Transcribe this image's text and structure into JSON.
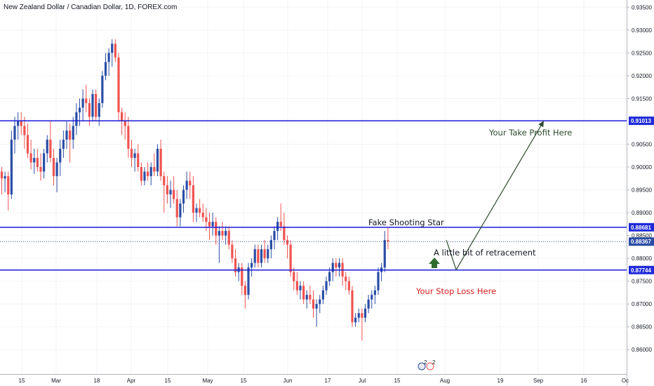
{
  "chart_data": {
    "type": "candlestick",
    "title": "New Zealand Dollar / Canadian Dollar, 1D, FOREX.com",
    "ylim": [
      0.8575,
      0.9356
    ],
    "y_ticks": [
      "0.86000",
      "0.86500",
      "0.87000",
      "0.87500",
      "0.88000",
      "0.88500",
      "0.89000",
      "0.89500",
      "0.90000",
      "0.90500",
      "0.91500",
      "0.92000",
      "0.92500",
      "0.93000",
      "0.93500"
    ],
    "x_ticks": [
      "15",
      "Mar",
      "18",
      "Apr",
      "15",
      "May",
      "15",
      "Jun",
      "17",
      "Jul",
      "15",
      "Aug",
      "19",
      "Sep",
      "16",
      "Oc"
    ],
    "colors": {
      "up": "#2a4ea6",
      "down": "#ef5350",
      "level_line": "#1a1adb",
      "badge": "#1f2bd9",
      "arrow": "#2e4a2e",
      "up_arrow": "#2f6b2f",
      "stop_text": "#d41f1f",
      "take_text": "#2e4a2e"
    },
    "levels": [
      {
        "value": 0.91013,
        "label": "0.91013"
      },
      {
        "value": 0.88681,
        "label": "0.88681"
      },
      {
        "value": 0.87744,
        "label": "0.87744"
      }
    ],
    "last_price": {
      "value": 0.88367,
      "label": "0.88367"
    },
    "annotations": {
      "take_profit": "Your Take Profit Here",
      "fake_star": "Fake Shooting Star",
      "retracement": "A little bit of retracement",
      "stop_loss": "Your Stop Loss Here"
    },
    "path_points": [
      {
        "day": 137,
        "price": 0.884
      },
      {
        "day": 140,
        "price": 0.8775
      },
      {
        "day": 167,
        "price": 0.9101
      }
    ],
    "event_badge": "2",
    "candles": [
      {
        "o": 0.899,
        "h": 0.9,
        "l": 0.894,
        "c": 0.8975
      },
      {
        "o": 0.8975,
        "h": 0.899,
        "l": 0.8945,
        "c": 0.898
      },
      {
        "o": 0.898,
        "h": 0.899,
        "l": 0.8905,
        "c": 0.894
      },
      {
        "o": 0.894,
        "h": 0.908,
        "l": 0.893,
        "c": 0.906
      },
      {
        "o": 0.906,
        "h": 0.911,
        "l": 0.903,
        "c": 0.909
      },
      {
        "o": 0.909,
        "h": 0.912,
        "l": 0.906,
        "c": 0.91
      },
      {
        "o": 0.91,
        "h": 0.912,
        "l": 0.907,
        "c": 0.909
      },
      {
        "o": 0.909,
        "h": 0.911,
        "l": 0.904,
        "c": 0.907
      },
      {
        "o": 0.907,
        "h": 0.9095,
        "l": 0.902,
        "c": 0.903
      },
      {
        "o": 0.903,
        "h": 0.906,
        "l": 0.8995,
        "c": 0.901
      },
      {
        "o": 0.901,
        "h": 0.904,
        "l": 0.8985,
        "c": 0.902
      },
      {
        "o": 0.902,
        "h": 0.904,
        "l": 0.899,
        "c": 0.9
      },
      {
        "o": 0.9,
        "h": 0.903,
        "l": 0.897,
        "c": 0.899
      },
      {
        "o": 0.899,
        "h": 0.904,
        "l": 0.8975,
        "c": 0.903
      },
      {
        "o": 0.903,
        "h": 0.907,
        "l": 0.901,
        "c": 0.906
      },
      {
        "o": 0.906,
        "h": 0.91,
        "l": 0.901,
        "c": 0.902
      },
      {
        "o": 0.902,
        "h": 0.904,
        "l": 0.896,
        "c": 0.898
      },
      {
        "o": 0.898,
        "h": 0.902,
        "l": 0.8945,
        "c": 0.901
      },
      {
        "o": 0.901,
        "h": 0.906,
        "l": 0.898,
        "c": 0.904
      },
      {
        "o": 0.904,
        "h": 0.908,
        "l": 0.902,
        "c": 0.906
      },
      {
        "o": 0.906,
        "h": 0.91,
        "l": 0.904,
        "c": 0.908
      },
      {
        "o": 0.908,
        "h": 0.9095,
        "l": 0.901,
        "c": 0.906
      },
      {
        "o": 0.906,
        "h": 0.911,
        "l": 0.904,
        "c": 0.909
      },
      {
        "o": 0.909,
        "h": 0.914,
        "l": 0.907,
        "c": 0.912
      },
      {
        "o": 0.912,
        "h": 0.915,
        "l": 0.909,
        "c": 0.913
      },
      {
        "o": 0.913,
        "h": 0.917,
        "l": 0.91,
        "c": 0.915
      },
      {
        "o": 0.915,
        "h": 0.918,
        "l": 0.912,
        "c": 0.914
      },
      {
        "o": 0.914,
        "h": 0.915,
        "l": 0.909,
        "c": 0.911
      },
      {
        "o": 0.911,
        "h": 0.917,
        "l": 0.91,
        "c": 0.916
      },
      {
        "o": 0.916,
        "h": 0.917,
        "l": 0.91,
        "c": 0.911
      },
      {
        "o": 0.911,
        "h": 0.915,
        "l": 0.909,
        "c": 0.914
      },
      {
        "o": 0.914,
        "h": 0.921,
        "l": 0.913,
        "c": 0.92
      },
      {
        "o": 0.92,
        "h": 0.925,
        "l": 0.919,
        "c": 0.923
      },
      {
        "o": 0.923,
        "h": 0.926,
        "l": 0.92,
        "c": 0.925
      },
      {
        "o": 0.925,
        "h": 0.928,
        "l": 0.922,
        "c": 0.927
      },
      {
        "o": 0.927,
        "h": 0.928,
        "l": 0.923,
        "c": 0.924
      },
      {
        "o": 0.924,
        "h": 0.925,
        "l": 0.91,
        "c": 0.912
      },
      {
        "o": 0.912,
        "h": 0.913,
        "l": 0.907,
        "c": 0.91
      },
      {
        "o": 0.91,
        "h": 0.912,
        "l": 0.906,
        "c": 0.909
      },
      {
        "o": 0.909,
        "h": 0.911,
        "l": 0.902,
        "c": 0.904
      },
      {
        "o": 0.904,
        "h": 0.906,
        "l": 0.9,
        "c": 0.902
      },
      {
        "o": 0.902,
        "h": 0.904,
        "l": 0.899,
        "c": 0.903
      },
      {
        "o": 0.903,
        "h": 0.905,
        "l": 0.899,
        "c": 0.9
      },
      {
        "o": 0.9,
        "h": 0.901,
        "l": 0.896,
        "c": 0.897
      },
      {
        "o": 0.897,
        "h": 0.9,
        "l": 0.896,
        "c": 0.899
      },
      {
        "o": 0.899,
        "h": 0.901,
        "l": 0.897,
        "c": 0.898
      },
      {
        "o": 0.898,
        "h": 0.901,
        "l": 0.896,
        "c": 0.9
      },
      {
        "o": 0.9,
        "h": 0.903,
        "l": 0.898,
        "c": 0.899
      },
      {
        "o": 0.899,
        "h": 0.905,
        "l": 0.898,
        "c": 0.904
      },
      {
        "o": 0.904,
        "h": 0.906,
        "l": 0.897,
        "c": 0.898
      },
      {
        "o": 0.898,
        "h": 0.899,
        "l": 0.89,
        "c": 0.896
      },
      {
        "o": 0.896,
        "h": 0.898,
        "l": 0.892,
        "c": 0.894
      },
      {
        "o": 0.894,
        "h": 0.897,
        "l": 0.891,
        "c": 0.895
      },
      {
        "o": 0.895,
        "h": 0.898,
        "l": 0.892,
        "c": 0.893
      },
      {
        "o": 0.893,
        "h": 0.895,
        "l": 0.887,
        "c": 0.889
      },
      {
        "o": 0.889,
        "h": 0.893,
        "l": 0.887,
        "c": 0.892
      },
      {
        "o": 0.892,
        "h": 0.896,
        "l": 0.89,
        "c": 0.895
      },
      {
        "o": 0.895,
        "h": 0.899,
        "l": 0.893,
        "c": 0.897
      },
      {
        "o": 0.897,
        "h": 0.899,
        "l": 0.893,
        "c": 0.896
      },
      {
        "o": 0.896,
        "h": 0.898,
        "l": 0.888,
        "c": 0.89
      },
      {
        "o": 0.89,
        "h": 0.892,
        "l": 0.888,
        "c": 0.891
      },
      {
        "o": 0.891,
        "h": 0.893,
        "l": 0.889,
        "c": 0.89
      },
      {
        "o": 0.89,
        "h": 0.892,
        "l": 0.888,
        "c": 0.889
      },
      {
        "o": 0.889,
        "h": 0.891,
        "l": 0.886,
        "c": 0.888
      },
      {
        "o": 0.888,
        "h": 0.89,
        "l": 0.884,
        "c": 0.887
      },
      {
        "o": 0.887,
        "h": 0.89,
        "l": 0.885,
        "c": 0.888
      },
      {
        "o": 0.888,
        "h": 0.889,
        "l": 0.883,
        "c": 0.885
      },
      {
        "o": 0.885,
        "h": 0.887,
        "l": 0.879,
        "c": 0.886
      },
      {
        "o": 0.886,
        "h": 0.888,
        "l": 0.884,
        "c": 0.885
      },
      {
        "o": 0.885,
        "h": 0.887,
        "l": 0.883,
        "c": 0.886
      },
      {
        "o": 0.886,
        "h": 0.887,
        "l": 0.882,
        "c": 0.883
      },
      {
        "o": 0.883,
        "h": 0.884,
        "l": 0.879,
        "c": 0.88
      },
      {
        "o": 0.88,
        "h": 0.882,
        "l": 0.876,
        "c": 0.877
      },
      {
        "o": 0.877,
        "h": 0.879,
        "l": 0.875,
        "c": 0.878
      },
      {
        "o": 0.878,
        "h": 0.879,
        "l": 0.872,
        "c": 0.874
      },
      {
        "o": 0.874,
        "h": 0.875,
        "l": 0.869,
        "c": 0.872
      },
      {
        "o": 0.872,
        "h": 0.879,
        "l": 0.871,
        "c": 0.878
      },
      {
        "o": 0.878,
        "h": 0.88,
        "l": 0.876,
        "c": 0.879
      },
      {
        "o": 0.879,
        "h": 0.883,
        "l": 0.878,
        "c": 0.882
      },
      {
        "o": 0.882,
        "h": 0.883,
        "l": 0.878,
        "c": 0.879
      },
      {
        "o": 0.879,
        "h": 0.883,
        "l": 0.878,
        "c": 0.882
      },
      {
        "o": 0.882,
        "h": 0.884,
        "l": 0.879,
        "c": 0.88
      },
      {
        "o": 0.88,
        "h": 0.883,
        "l": 0.879,
        "c": 0.882
      },
      {
        "o": 0.882,
        "h": 0.885,
        "l": 0.88,
        "c": 0.884
      },
      {
        "o": 0.884,
        "h": 0.887,
        "l": 0.882,
        "c": 0.886
      },
      {
        "o": 0.886,
        "h": 0.889,
        "l": 0.884,
        "c": 0.888
      },
      {
        "o": 0.888,
        "h": 0.892,
        "l": 0.886,
        "c": 0.887
      },
      {
        "o": 0.887,
        "h": 0.89,
        "l": 0.883,
        "c": 0.884
      },
      {
        "o": 0.884,
        "h": 0.885,
        "l": 0.88,
        "c": 0.883
      },
      {
        "o": 0.883,
        "h": 0.884,
        "l": 0.876,
        "c": 0.877
      },
      {
        "o": 0.877,
        "h": 0.878,
        "l": 0.873,
        "c": 0.875
      },
      {
        "o": 0.875,
        "h": 0.877,
        "l": 0.872,
        "c": 0.873
      },
      {
        "o": 0.873,
        "h": 0.875,
        "l": 0.871,
        "c": 0.874
      },
      {
        "o": 0.874,
        "h": 0.875,
        "l": 0.87,
        "c": 0.871
      },
      {
        "o": 0.871,
        "h": 0.873,
        "l": 0.869,
        "c": 0.872
      },
      {
        "o": 0.872,
        "h": 0.874,
        "l": 0.87,
        "c": 0.871
      },
      {
        "o": 0.871,
        "h": 0.873,
        "l": 0.867,
        "c": 0.869
      },
      {
        "o": 0.869,
        "h": 0.871,
        "l": 0.865,
        "c": 0.87
      },
      {
        "o": 0.87,
        "h": 0.872,
        "l": 0.868,
        "c": 0.871
      },
      {
        "o": 0.871,
        "h": 0.874,
        "l": 0.87,
        "c": 0.873
      },
      {
        "o": 0.873,
        "h": 0.876,
        "l": 0.872,
        "c": 0.875
      },
      {
        "o": 0.875,
        "h": 0.878,
        "l": 0.874,
        "c": 0.877
      },
      {
        "o": 0.877,
        "h": 0.88,
        "l": 0.875,
        "c": 0.879
      },
      {
        "o": 0.879,
        "h": 0.88,
        "l": 0.876,
        "c": 0.878
      },
      {
        "o": 0.878,
        "h": 0.88,
        "l": 0.876,
        "c": 0.879
      },
      {
        "o": 0.879,
        "h": 0.88,
        "l": 0.874,
        "c": 0.876
      },
      {
        "o": 0.876,
        "h": 0.877,
        "l": 0.873,
        "c": 0.875
      },
      {
        "o": 0.875,
        "h": 0.876,
        "l": 0.872,
        "c": 0.873
      },
      {
        "o": 0.873,
        "h": 0.874,
        "l": 0.865,
        "c": 0.866
      },
      {
        "o": 0.866,
        "h": 0.868,
        "l": 0.865,
        "c": 0.867
      },
      {
        "o": 0.867,
        "h": 0.869,
        "l": 0.866,
        "c": 0.868
      },
      {
        "o": 0.868,
        "h": 0.869,
        "l": 0.862,
        "c": 0.867
      },
      {
        "o": 0.867,
        "h": 0.87,
        "l": 0.866,
        "c": 0.869
      },
      {
        "o": 0.869,
        "h": 0.872,
        "l": 0.868,
        "c": 0.871
      },
      {
        "o": 0.871,
        "h": 0.873,
        "l": 0.869,
        "c": 0.872
      },
      {
        "o": 0.872,
        "h": 0.874,
        "l": 0.87,
        "c": 0.873
      },
      {
        "o": 0.873,
        "h": 0.878,
        "l": 0.872,
        "c": 0.877
      },
      {
        "o": 0.877,
        "h": 0.879,
        "l": 0.875,
        "c": 0.878
      },
      {
        "o": 0.878,
        "h": 0.886,
        "l": 0.877,
        "c": 0.884
      },
      {
        "o": 0.884,
        "h": 0.8868,
        "l": 0.882,
        "c": 0.8837
      }
    ]
  }
}
